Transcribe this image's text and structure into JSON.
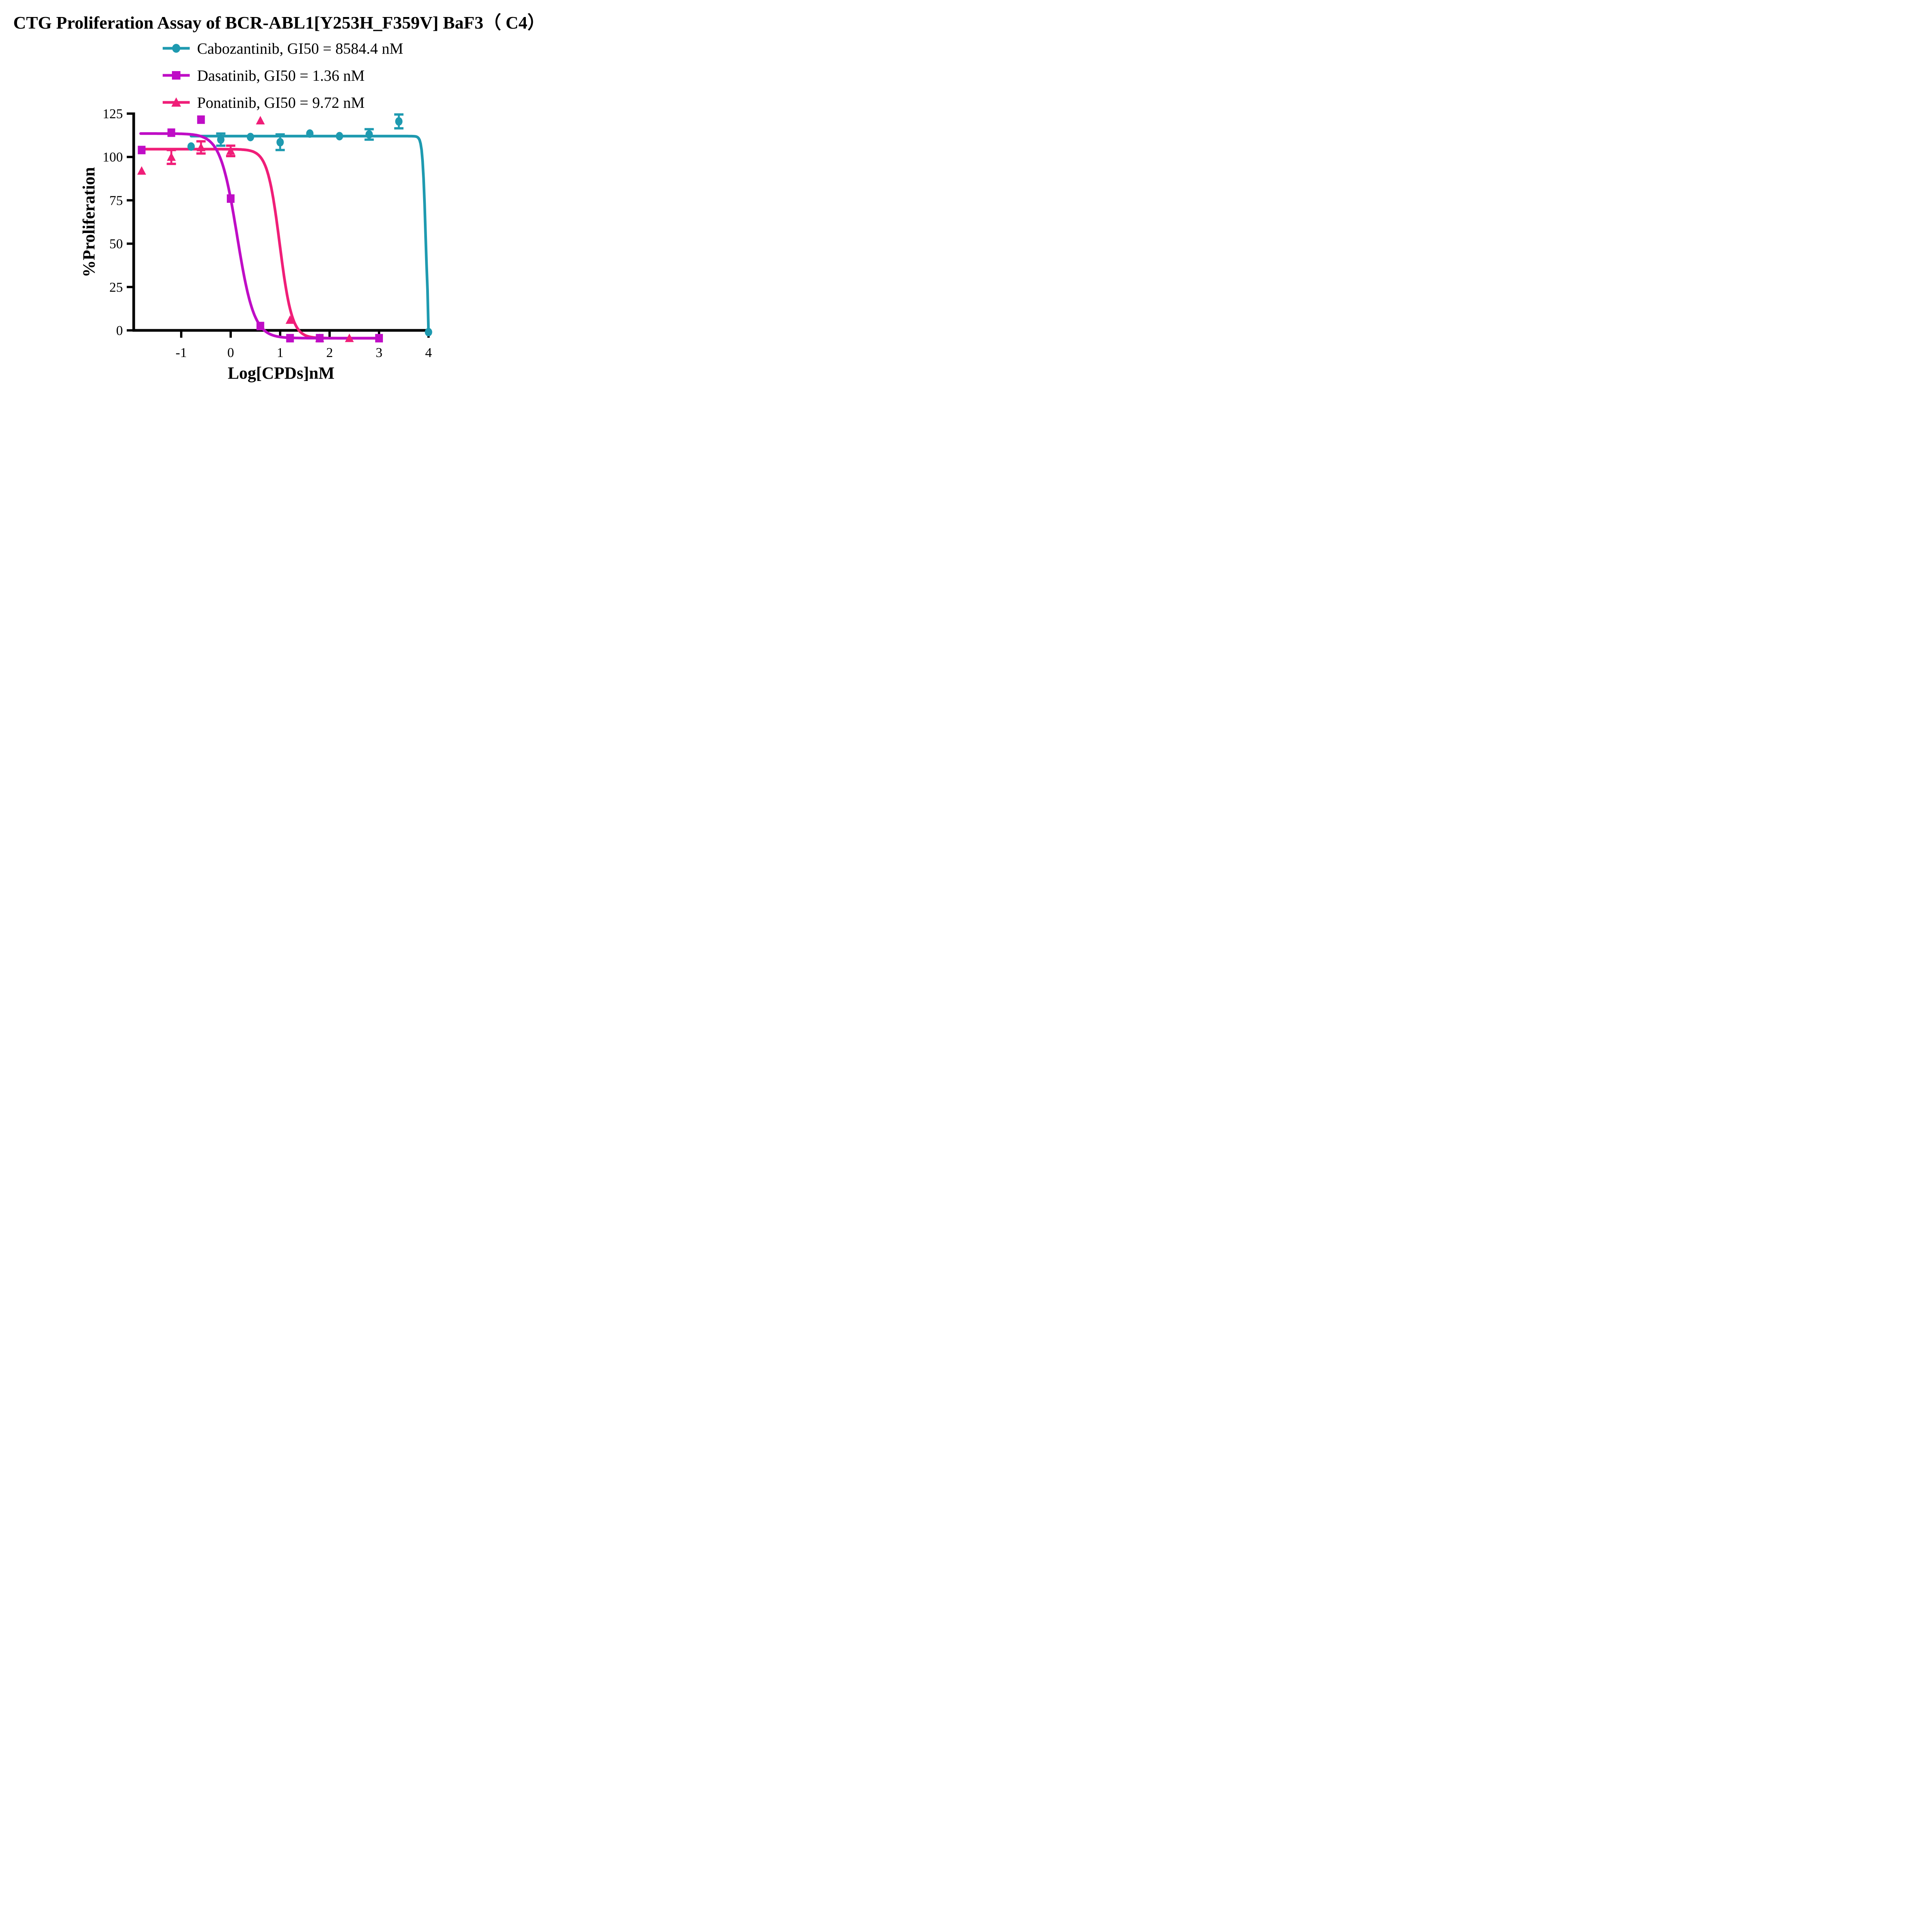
{
  "title": "CTG Proliferation Assay of BCR-ABL1[Y253H_F359V] BaF3（ C4）",
  "chart_data": {
    "type": "line",
    "title": "CTG Proliferation Assay of BCR-ABL1[Y253H_F359V] BaF3（ C4）",
    "xlabel": "Log[CPDs]nM",
    "ylabel": "%Proliferation",
    "xticks": [
      -1,
      0,
      1,
      2,
      3,
      4
    ],
    "yticks": [
      0,
      25,
      50,
      75,
      100,
      125
    ],
    "xlim": [
      -1.95,
      4.1
    ],
    "ylim": [
      -8,
      128
    ],
    "grid": false,
    "legend_position": "top-center",
    "axis_color": "#000000",
    "series": [
      {
        "name": "Cabozantinib",
        "legend_label": "Cabozantinib, GI50 = 8584.4 nM",
        "gi50_nM": 8584.4,
        "color": "#1E9AB0",
        "marker": "circle",
        "points": [
          {
            "x": -0.8,
            "y": 106
          },
          {
            "x": -0.2,
            "y": 110,
            "err": 3.5
          },
          {
            "x": 0.4,
            "y": 111.5
          },
          {
            "x": 1.0,
            "y": 108.5,
            "err": 4.5
          },
          {
            "x": 1.6,
            "y": 113.5
          },
          {
            "x": 2.2,
            "y": 112
          },
          {
            "x": 2.8,
            "y": 113,
            "err": 3
          },
          {
            "x": 3.4,
            "y": 120.5,
            "err": 4
          },
          {
            "x": 4.0,
            "y": -1
          }
        ],
        "curve": {
          "top": 112,
          "bottom": -1,
          "logIC50": 3.94,
          "hill": 14,
          "x_start": -0.8,
          "x_end": 3.98,
          "end": [
            4.0,
            -1
          ]
        }
      },
      {
        "name": "Dasatinib",
        "legend_label": "Dasatinib, GI50 = 1.36 nM",
        "gi50_nM": 1.36,
        "color": "#BF0DC6",
        "marker": "square",
        "points": [
          {
            "x": -1.8,
            "y": 104
          },
          {
            "x": -1.2,
            "y": 114
          },
          {
            "x": -0.6,
            "y": 121.5
          },
          {
            "x": 0.0,
            "y": 76
          },
          {
            "x": 0.6,
            "y": 2.5
          },
          {
            "x": 1.2,
            "y": -4.5
          },
          {
            "x": 1.8,
            "y": -4.5
          },
          {
            "x": 3.0,
            "y": -4.5
          }
        ],
        "curve": {
          "top": 113.5,
          "bottom": -4.5,
          "logIC50": 0.13,
          "hill": 2.55,
          "x_start": -1.82,
          "x_end": 3.05
        }
      },
      {
        "name": "Ponatinib",
        "legend_label": "Ponatinib, GI50 = 9.72 nM",
        "gi50_nM": 9.72,
        "color": "#F01E78",
        "marker": "triangle",
        "points": [
          {
            "x": -1.8,
            "y": 92
          },
          {
            "x": -1.2,
            "y": 100,
            "err": 4
          },
          {
            "x": -0.6,
            "y": 105.5,
            "err": 3.5
          },
          {
            "x": 0.0,
            "y": 103.5,
            "err": 3
          },
          {
            "x": 0.6,
            "y": 121
          },
          {
            "x": 1.2,
            "y": 6
          },
          {
            "x": 1.8,
            "y": -4.5
          },
          {
            "x": 2.4,
            "y": -4.5
          }
        ],
        "curve": {
          "top": 104.5,
          "bottom": -4.5,
          "logIC50": 0.99,
          "hill": 3.5,
          "x_start": -1.82,
          "x_end": 3.0
        }
      }
    ]
  }
}
